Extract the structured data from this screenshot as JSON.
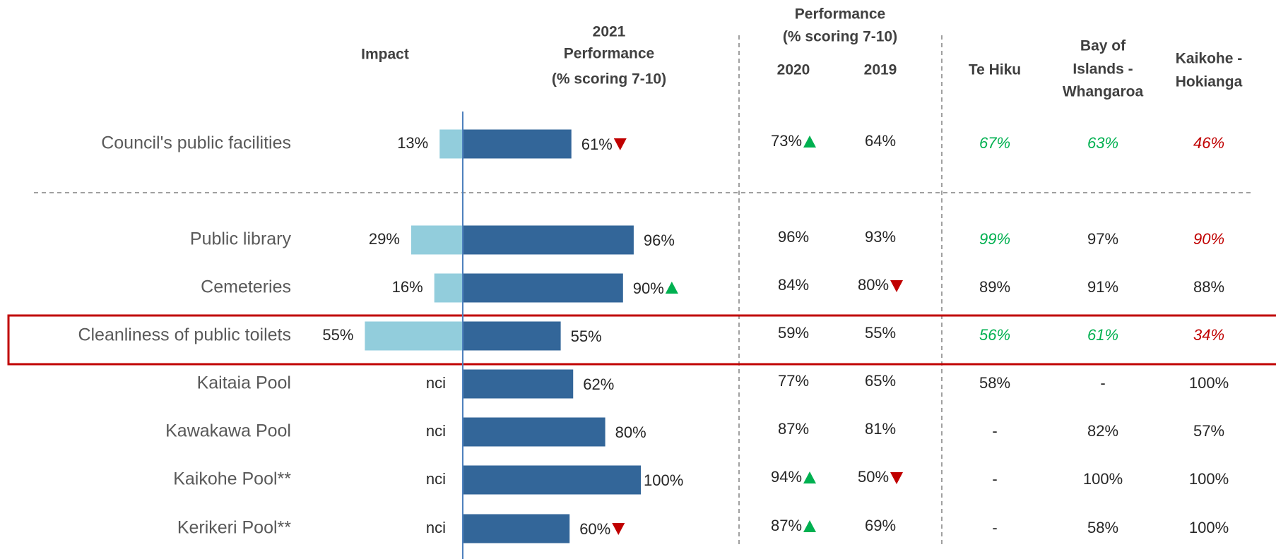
{
  "chart_data": {
    "type": "bar",
    "categories": [
      "Council's public facilities",
      "Public library",
      "Cemeteries",
      "Cleanliness of public toilets",
      "Kaitaia Pool",
      "Kawakawa Pool",
      "Kaikohe Pool**",
      "Kerikeri Pool**"
    ],
    "xlim": [
      0,
      100
    ],
    "up_color": "#00b050",
    "down_color": "#c00000",
    "high_color": "#00b050",
    "low_color": "#c00000",
    "highlight_row": 3,
    "series": [
      {
        "header": [
          "Impact"
        ],
        "color": "#92cddc",
        "direction": "left",
        "values": [
          13,
          29,
          16,
          55,
          null,
          null,
          null,
          null
        ],
        "value_labels": [
          "13%",
          "29%",
          "16%",
          "55%",
          "nci",
          "nci",
          "nci",
          "nci"
        ]
      },
      {
        "header": [
          "2021",
          "Performance",
          "(% scoring 7-10)"
        ],
        "color": "#336699",
        "direction": "right",
        "values": [
          61,
          96,
          90,
          55,
          62,
          80,
          100,
          60
        ],
        "value_labels": [
          "61%",
          "96%",
          "90%",
          "55%",
          "62%",
          "80%",
          "100%",
          "60%"
        ],
        "trends": [
          "down",
          null,
          "up",
          null,
          null,
          null,
          null,
          "down"
        ]
      }
    ],
    "group_header": [
      "Performance",
      "(% scoring 7-10)"
    ],
    "columns": [
      {
        "header": [
          "2020"
        ],
        "values": [
          73,
          96,
          84,
          59,
          77,
          87,
          94,
          87
        ],
        "value_labels": [
          "73%",
          "96%",
          "84%",
          "59%",
          "77%",
          "87%",
          "94%",
          "87%"
        ],
        "trends": [
          "up",
          null,
          null,
          null,
          null,
          null,
          "up",
          "up"
        ]
      },
      {
        "header": [
          "2019"
        ],
        "values": [
          64,
          93,
          80,
          55,
          65,
          81,
          50,
          69
        ],
        "value_labels": [
          "64%",
          "93%",
          "80%",
          "55%",
          "65%",
          "81%",
          "50%",
          "69%"
        ],
        "trends": [
          null,
          null,
          "down",
          null,
          null,
          null,
          "down",
          null
        ]
      },
      {
        "header": [
          "Te Hiku"
        ],
        "values": [
          67,
          99,
          89,
          56,
          58,
          null,
          null,
          null
        ],
        "value_labels": [
          "67%",
          "99%",
          "89%",
          "56%",
          "58%",
          "-",
          "-",
          "-"
        ],
        "styles": [
          "high",
          "high",
          null,
          "high",
          null,
          null,
          null,
          null
        ]
      },
      {
        "header": [
          "Bay of",
          "Islands -",
          "Whangaroa"
        ],
        "values": [
          63,
          97,
          91,
          61,
          null,
          82,
          100,
          58
        ],
        "value_labels": [
          "63%",
          "97%",
          "91%",
          "61%",
          "-",
          "82%",
          "100%",
          "58%"
        ],
        "styles": [
          "high",
          null,
          null,
          "high",
          null,
          null,
          null,
          null
        ]
      },
      {
        "header": [
          "Kaikohe -",
          "Hokianga"
        ],
        "values": [
          46,
          90,
          88,
          34,
          100,
          57,
          100,
          100
        ],
        "value_labels": [
          "46%",
          "90%",
          "88%",
          "34%",
          "100%",
          "57%",
          "100%",
          "100%"
        ],
        "styles": [
          "low",
          "low",
          null,
          "low",
          null,
          null,
          null,
          null
        ]
      }
    ]
  }
}
